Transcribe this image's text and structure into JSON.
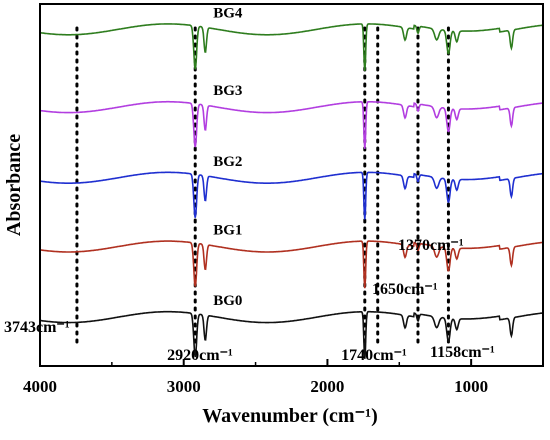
{
  "chart_data": {
    "type": "line",
    "title": "",
    "xlabel": "Wavenumber (cm⁻¹)",
    "ylabel": "Absorbance",
    "xlim": [
      4000,
      500
    ],
    "x_reversed": true,
    "xticks": [
      4000,
      3000,
      2000,
      1000
    ],
    "yticks_shown": false,
    "grid": false,
    "legend": "none (series labeled inline)",
    "series": [
      {
        "name": "BG4",
        "color": "#2e7d1e",
        "baseline": 0.93
      },
      {
        "name": "BG3",
        "color": "#b23ee0",
        "baseline": 0.715
      },
      {
        "name": "BG2",
        "color": "#1f2fd0",
        "baseline": 0.52
      },
      {
        "name": "BG1",
        "color": "#b03020",
        "baseline": 0.33
      },
      {
        "name": "BG0",
        "color": "#111111",
        "baseline": 0.135
      }
    ],
    "peaks": [
      {
        "x": 2920,
        "depth": 0.12,
        "width": 14
      },
      {
        "x": 2850,
        "depth": 0.07,
        "width": 12
      },
      {
        "x": 1740,
        "depth": 0.13,
        "width": 9
      },
      {
        "x": 1460,
        "depth": 0.035,
        "width": 14
      },
      {
        "x": 1370,
        "depth": 0.02,
        "width": 10
      },
      {
        "x": 1240,
        "depth": 0.03,
        "width": 20
      },
      {
        "x": 1158,
        "depth": 0.065,
        "width": 16
      },
      {
        "x": 1100,
        "depth": 0.03,
        "width": 14
      },
      {
        "x": 720,
        "depth": 0.05,
        "width": 12
      }
    ],
    "annotation_lines": [
      3743,
      2920,
      1740,
      1650,
      1370,
      1158
    ],
    "annotations": [
      {
        "text": "3743cm⁻¹",
        "x": 3743
      },
      {
        "text": "2920cm⁻¹",
        "x": 2920
      },
      {
        "text": "1740cm⁻¹",
        "x": 1740
      },
      {
        "text": "1650cm⁻¹",
        "x": 1650
      },
      {
        "text": "1370cm⁻¹",
        "x": 1370
      },
      {
        "text": "1158cm⁻¹",
        "x": 1158
      }
    ]
  }
}
